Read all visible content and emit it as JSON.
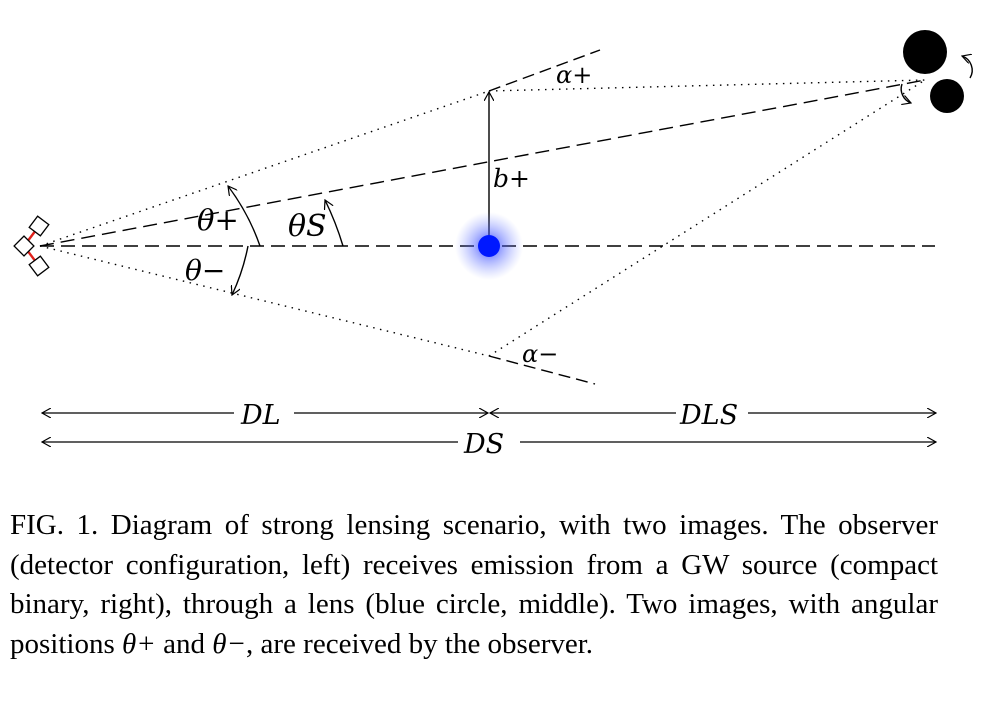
{
  "labels": {
    "alpha_plus": "α+",
    "alpha_minus": "α−",
    "b_plus": "b+",
    "theta_plus": "θ+",
    "theta_minus": "θ−",
    "theta_s": "θS",
    "d_l": "DL",
    "d_ls": "DLS",
    "d_s": "DS"
  },
  "caption": {
    "figure_label": "FIG. 1.",
    "text_1": " Diagram of strong lensing scenario, with two images. The observer (detector configuration, left) receives emission from a GW source (compact binary, right), through a lens (blue circle, middle). Two images, with angular positions ",
    "theta_plus": "θ+",
    "text_2": " and ",
    "theta_minus": "θ−",
    "text_3": ", are received by the observer."
  },
  "colors": {
    "lens": "#0018ff",
    "detector_arm": "#e0201a",
    "line": "#000000"
  },
  "icons": {
    "observer": "detector-icon",
    "source": "compact-binary-icon",
    "lens": "lens-glow-circle"
  }
}
